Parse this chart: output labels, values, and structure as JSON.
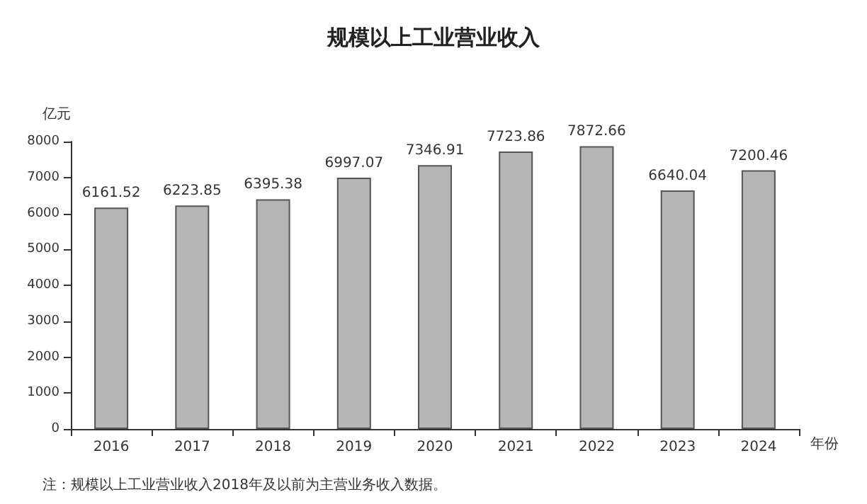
{
  "chart_data": {
    "type": "bar",
    "title": "规模以上工业营业收入",
    "xlabel": "年份",
    "ylabel": "亿元",
    "categories": [
      "2016",
      "2017",
      "2018",
      "2019",
      "2020",
      "2021",
      "2022",
      "2023",
      "2024"
    ],
    "values": [
      6161.52,
      6223.85,
      6395.38,
      6997.07,
      7346.91,
      7723.86,
      7872.66,
      6640.04,
      7200.46
    ],
    "color": "#b5b5b5",
    "ylim": [
      0,
      8000
    ],
    "yticks": [
      0,
      1000,
      2000,
      3000,
      4000,
      5000,
      6000,
      7000,
      8000
    ],
    "grid": false,
    "data_labels": true,
    "annotations": [
      "注：规模以上工业营业收入2018年及以前为主营业务收入数据。"
    ]
  }
}
